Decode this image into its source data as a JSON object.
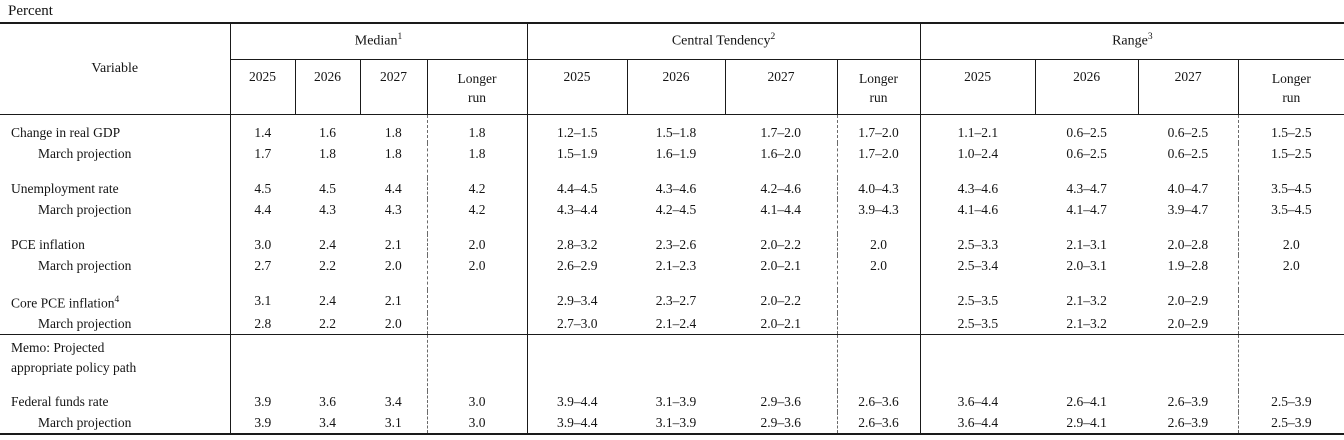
{
  "page_title": "Percent",
  "table": {
    "variable_header": "Variable",
    "groups": [
      {
        "label": "Median",
        "footnote": "1",
        "years": [
          "2025",
          "2026",
          "2027"
        ],
        "longer_run": "Longer run"
      },
      {
        "label": "Central Tendency",
        "footnote": "2",
        "years": [
          "2025",
          "2026",
          "2027"
        ],
        "longer_run": "Longer run"
      },
      {
        "label": "Range",
        "footnote": "3",
        "years": [
          "2025",
          "2026",
          "2027"
        ],
        "longer_run": "Longer run"
      }
    ],
    "rows": [
      {
        "label": "Change in real GDP",
        "cells": [
          "1.4",
          "1.6",
          "1.8",
          "1.8",
          "1.2–1.5",
          "1.5–1.8",
          "1.7–2.0",
          "1.7–2.0",
          "1.1–2.1",
          "0.6–2.5",
          "0.6–2.5",
          "1.5–2.5"
        ]
      },
      {
        "label": "March projection",
        "indent": true,
        "pad_after": true,
        "cells": [
          "1.7",
          "1.8",
          "1.8",
          "1.8",
          "1.5–1.9",
          "1.6–1.9",
          "1.6–2.0",
          "1.7–2.0",
          "1.0–2.4",
          "0.6–2.5",
          "0.6–2.5",
          "1.5–2.5"
        ]
      },
      {
        "label": "Unemployment rate",
        "cells": [
          "4.5",
          "4.5",
          "4.4",
          "4.2",
          "4.4–4.5",
          "4.3–4.6",
          "4.2–4.6",
          "4.0–4.3",
          "4.3–4.6",
          "4.3–4.7",
          "4.0–4.7",
          "3.5–4.5"
        ]
      },
      {
        "label": "March projection",
        "indent": true,
        "pad_after": true,
        "cells": [
          "4.4",
          "4.3",
          "4.3",
          "4.2",
          "4.3–4.4",
          "4.2–4.5",
          "4.1–4.4",
          "3.9–4.3",
          "4.1–4.6",
          "4.1–4.7",
          "3.9–4.7",
          "3.5–4.5"
        ]
      },
      {
        "label": "PCE inflation",
        "cells": [
          "3.0",
          "2.4",
          "2.1",
          "2.0",
          "2.8–3.2",
          "2.3–2.6",
          "2.0–2.2",
          "2.0",
          "2.5–3.3",
          "2.1–3.1",
          "2.0–2.8",
          "2.0"
        ]
      },
      {
        "label": "March projection",
        "indent": true,
        "pad_after": true,
        "cells": [
          "2.7",
          "2.2",
          "2.0",
          "2.0",
          "2.6–2.9",
          "2.1–2.3",
          "2.0–2.1",
          "2.0",
          "2.5–3.4",
          "2.0–3.1",
          "1.9–2.8",
          "2.0"
        ]
      },
      {
        "label": "Core PCE inflation",
        "footnote": "4",
        "cells": [
          "3.1",
          "2.4",
          "2.1",
          "",
          "2.9–3.4",
          "2.3–2.7",
          "2.0–2.2",
          "",
          "2.5–3.5",
          "2.1–3.2",
          "2.0–2.9",
          ""
        ]
      },
      {
        "label": "March projection",
        "indent": true,
        "cells": [
          "2.8",
          "2.2",
          "2.0",
          "",
          "2.7–3.0",
          "2.1–2.4",
          "2.0–2.1",
          "",
          "2.5–3.5",
          "2.1–3.2",
          "2.0–2.9",
          ""
        ]
      },
      {
        "label": "Memo: Projected",
        "label2": "appropriate policy path",
        "memo": true,
        "cells": [
          "",
          "",
          "",
          "",
          "",
          "",
          "",
          "",
          "",
          "",
          "",
          ""
        ]
      },
      {
        "label": "Federal funds rate",
        "cells": [
          "3.9",
          "3.6",
          "3.4",
          "3.0",
          "3.9–4.4",
          "3.1–3.9",
          "2.9–3.6",
          "2.6–3.6",
          "3.6–4.4",
          "2.6–4.1",
          "2.6–3.9",
          "2.5–3.9"
        ]
      },
      {
        "label": "March projection",
        "indent": true,
        "cells": [
          "3.9",
          "3.4",
          "3.1",
          "3.0",
          "3.9–4.4",
          "3.1–3.9",
          "2.9–3.6",
          "2.6–3.6",
          "3.6–4.4",
          "2.9–4.1",
          "2.6–3.9",
          "2.5–3.9"
        ]
      }
    ]
  }
}
